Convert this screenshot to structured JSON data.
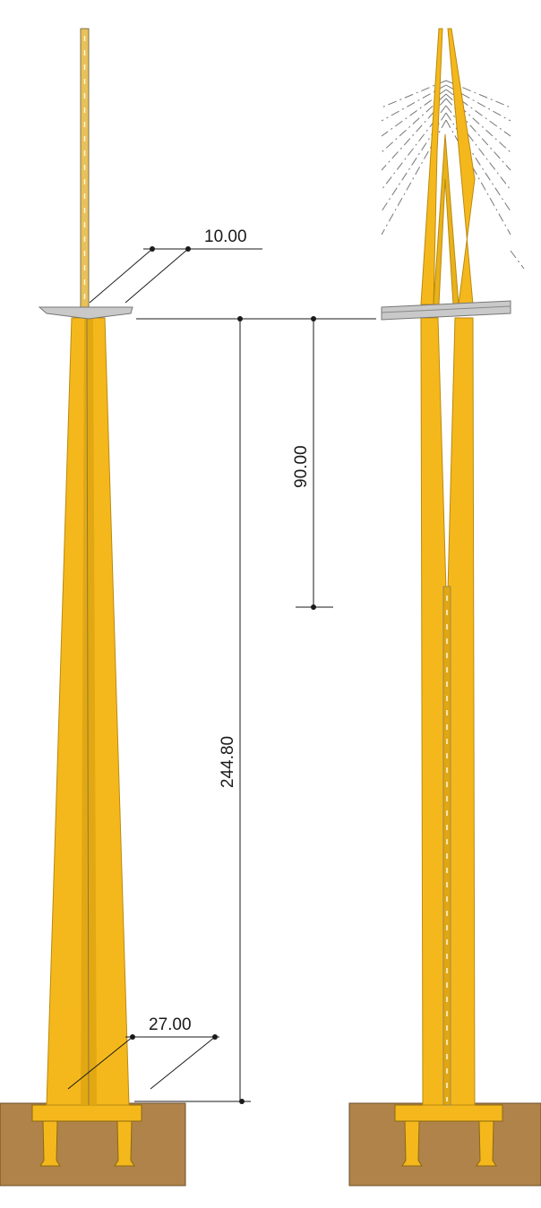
{
  "diagram": {
    "dimensions": {
      "deck_width": "10.00",
      "upper_pylon": "90.00",
      "pylon_height": "244.80",
      "base_width": "27.00"
    },
    "colors": {
      "pylon": "#f5b81c",
      "pylon_edge": "#b98a10",
      "ground": "#b0834a",
      "ground_edge": "#6b4e27",
      "deck": "#c9c9c9",
      "line": "#1a1a1a"
    }
  }
}
